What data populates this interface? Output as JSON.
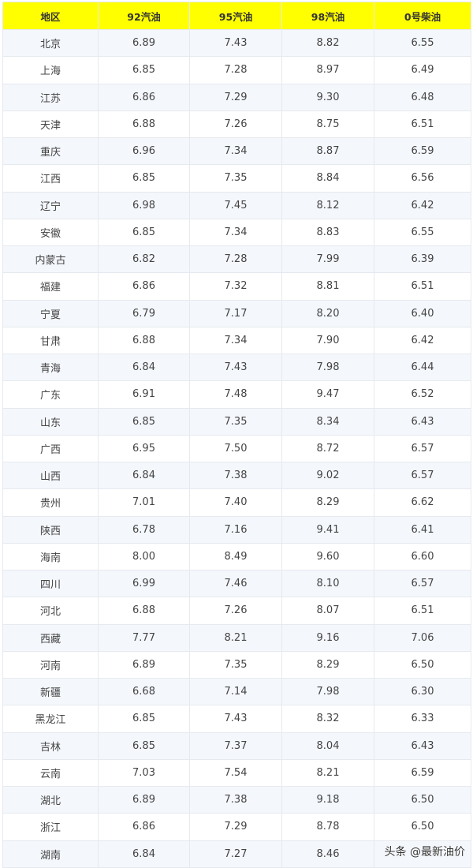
{
  "table": {
    "headers": [
      "地区",
      "92汽油",
      "95汽油",
      "98汽油",
      "0号柴油"
    ],
    "rows": [
      [
        "北京",
        "6.89",
        "7.43",
        "8.82",
        "6.55"
      ],
      [
        "上海",
        "6.85",
        "7.28",
        "8.97",
        "6.49"
      ],
      [
        "江苏",
        "6.86",
        "7.29",
        "9.30",
        "6.48"
      ],
      [
        "天津",
        "6.88",
        "7.26",
        "8.75",
        "6.51"
      ],
      [
        "重庆",
        "6.96",
        "7.34",
        "8.87",
        "6.59"
      ],
      [
        "江西",
        "6.85",
        "7.35",
        "8.84",
        "6.56"
      ],
      [
        "辽宁",
        "6.98",
        "7.45",
        "8.12",
        "6.42"
      ],
      [
        "安徽",
        "6.85",
        "7.34",
        "8.83",
        "6.55"
      ],
      [
        "内蒙古",
        "6.82",
        "7.28",
        "7.99",
        "6.39"
      ],
      [
        "福建",
        "6.86",
        "7.32",
        "8.81",
        "6.51"
      ],
      [
        "宁夏",
        "6.79",
        "7.17",
        "8.20",
        "6.40"
      ],
      [
        "甘肃",
        "6.88",
        "7.34",
        "7.90",
        "6.42"
      ],
      [
        "青海",
        "6.84",
        "7.43",
        "7.98",
        "6.44"
      ],
      [
        "广东",
        "6.91",
        "7.48",
        "9.47",
        "6.52"
      ],
      [
        "山东",
        "6.85",
        "7.35",
        "8.34",
        "6.43"
      ],
      [
        "广西",
        "6.95",
        "7.50",
        "8.72",
        "6.57"
      ],
      [
        "山西",
        "6.84",
        "7.38",
        "9.02",
        "6.57"
      ],
      [
        "贵州",
        "7.01",
        "7.40",
        "8.29",
        "6.62"
      ],
      [
        "陕西",
        "6.78",
        "7.16",
        "9.41",
        "6.41"
      ],
      [
        "海南",
        "8.00",
        "8.49",
        "9.60",
        "6.60"
      ],
      [
        "四川",
        "6.99",
        "7.46",
        "8.10",
        "6.57"
      ],
      [
        "河北",
        "6.88",
        "7.26",
        "8.07",
        "6.51"
      ],
      [
        "西藏",
        "7.77",
        "8.21",
        "9.16",
        "7.06"
      ],
      [
        "河南",
        "6.89",
        "7.35",
        "8.29",
        "6.50"
      ],
      [
        "新疆",
        "6.68",
        "7.14",
        "7.98",
        "6.30"
      ],
      [
        "黑龙江",
        "6.85",
        "7.43",
        "8.32",
        "6.33"
      ],
      [
        "吉林",
        "6.85",
        "7.37",
        "8.04",
        "6.43"
      ],
      [
        "云南",
        "7.03",
        "7.54",
        "8.21",
        "6.59"
      ],
      [
        "湖北",
        "6.89",
        "7.38",
        "9.18",
        "6.50"
      ],
      [
        "浙江",
        "6.86",
        "7.29",
        "8.78",
        "6.50"
      ],
      [
        "湖南",
        "6.84",
        "7.27",
        "8.46",
        ""
      ]
    ]
  },
  "watermark": "头条 @最新油价",
  "colors": {
    "header_bg": "#ffff00",
    "alt_row_bg": "#f4f7fc"
  }
}
